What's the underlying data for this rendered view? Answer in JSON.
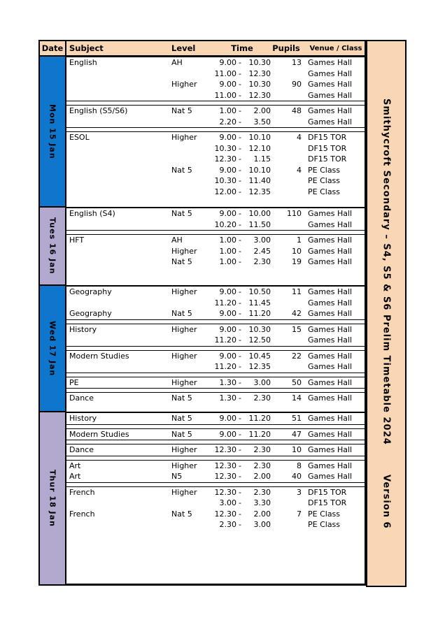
{
  "colors": {
    "peach": "#FAD7B4",
    "blue": "#0E76CC",
    "purple": "#B3A8CE",
    "grid": "#000000",
    "page_bg": "#FFFFFF"
  },
  "header": {
    "date": "Date",
    "subject": "Subject",
    "level": "Level",
    "time": "Time",
    "pupils": "Pupils",
    "venue": "Venue / Class"
  },
  "side_title": {
    "line1": "Smithycroft Secondary – S4, S5 & S6 Prelim Timetable 2024",
    "line2": "Version 6"
  },
  "days": [
    {
      "label": "Mon 15 Jan",
      "color": "blue",
      "blocks": [
        {
          "rows": [
            {
              "subject": "English",
              "level": "AH",
              "start": "9.00",
              "dash": "-",
              "end": "10.30",
              "pupils": "13",
              "venue": "Games Hall"
            },
            {
              "subject": "",
              "level": "",
              "start": "11.00",
              "dash": "-",
              "end": "12.30",
              "pupils": "",
              "venue": "Games Hall"
            },
            {
              "subject": "",
              "level": "Higher",
              "start": "9.00",
              "dash": "-",
              "end": "10.30",
              "pupils": "90",
              "venue": "Games Hall"
            },
            {
              "subject": "",
              "level": "",
              "start": "11.00",
              "dash": "-",
              "end": "12.30",
              "pupils": "",
              "venue": "Games Hall"
            }
          ]
        },
        {
          "rows": [
            {
              "subject": "English (S5/S6)",
              "level": "Nat 5",
              "start": "1.00",
              "dash": "-",
              "end": "2.00",
              "pupils": "48",
              "venue": "Games Hall"
            },
            {
              "subject": "",
              "level": "",
              "start": "2.20",
              "dash": "-",
              "end": "3.50",
              "pupils": "",
              "venue": "Games Hall"
            }
          ]
        },
        {
          "rows": [
            {
              "subject": "ESOL",
              "level": "Higher",
              "start": "9.00",
              "dash": "-",
              "end": "10.10",
              "pupils": "4",
              "venue": "DF15 TOR"
            },
            {
              "subject": "",
              "level": "",
              "start": "10.30",
              "dash": "-",
              "end": "12.10",
              "pupils": "",
              "venue": "DF15 TOR"
            },
            {
              "subject": "",
              "level": "",
              "start": "12.30",
              "dash": "-",
              "end": "1.15",
              "pupils": "",
              "venue": "DF15 TOR"
            },
            {
              "subject": "",
              "level": "Nat 5",
              "start": "9.00",
              "dash": "-",
              "end": "10.10",
              "pupils": "4",
              "venue": "PE Class"
            },
            {
              "subject": "",
              "level": "",
              "start": "10.30",
              "dash": "-",
              "end": "11.40",
              "pupils": "",
              "venue": "PE Class"
            },
            {
              "subject": "",
              "level": "",
              "start": "12.00",
              "dash": "-",
              "end": "12.35",
              "pupils": "",
              "venue": "PE Class"
            }
          ]
        }
      ]
    },
    {
      "label": "Tues 16 Jan",
      "color": "purple",
      "blocks": [
        {
          "rows": [
            {
              "subject": "English (S4)",
              "level": "Nat 5",
              "start": "9.00",
              "dash": "-",
              "end": "10.00",
              "pupils": "110",
              "venue": "Games Hall"
            },
            {
              "subject": "",
              "level": "",
              "start": "10.20",
              "dash": "-",
              "end": "11.50",
              "pupils": "",
              "venue": "Games Hall"
            }
          ]
        },
        {
          "rows": [
            {
              "subject": "HFT",
              "level": "AH",
              "start": "1.00",
              "dash": "-",
              "end": "3.00",
              "pupils": "1",
              "venue": "Games Hall"
            },
            {
              "subject": "",
              "level": "Higher",
              "start": "1.00",
              "dash": "-",
              "end": "2.45",
              "pupils": "10",
              "venue": "Games Hall"
            },
            {
              "subject": "",
              "level": "Nat 5",
              "start": "1.00",
              "dash": "-",
              "end": "2.30",
              "pupils": "19",
              "venue": "Games Hall"
            }
          ]
        }
      ]
    },
    {
      "label": "Wed 17 Jan",
      "color": "blue",
      "blocks": [
        {
          "rows": [
            {
              "subject": "Geography",
              "level": "Higher",
              "start": "9.00",
              "dash": "-",
              "end": "10.50",
              "pupils": "11",
              "venue": "Games Hall"
            },
            {
              "subject": "",
              "level": "",
              "start": "11.20",
              "dash": "-",
              "end": "11.45",
              "pupils": "",
              "venue": "Games Hall"
            },
            {
              "subject": "Geography",
              "level": "Nat 5",
              "start": "9.00",
              "dash": "-",
              "end": "11.20",
              "pupils": "42",
              "venue": "Games Hall"
            }
          ]
        },
        {
          "rows": [
            {
              "subject": "History",
              "level": "Higher",
              "start": "9.00",
              "dash": "-",
              "end": "10.30",
              "pupils": "15",
              "venue": "Games Hall"
            },
            {
              "subject": "",
              "level": "",
              "start": "11.20",
              "dash": "-",
              "end": "12.50",
              "pupils": "",
              "venue": "Games Hall"
            }
          ]
        },
        {
          "rows": [
            {
              "subject": "Modern Studies",
              "level": "Higher",
              "start": "9.00",
              "dash": "-",
              "end": "10.45",
              "pupils": "22",
              "venue": "Games Hall"
            },
            {
              "subject": "",
              "level": "",
              "start": "11.20",
              "dash": "-",
              "end": "12.35",
              "pupils": "",
              "venue": "Games Hall"
            }
          ]
        },
        {
          "rows": [
            {
              "subject": "PE",
              "level": "Higher",
              "start": "1.30",
              "dash": "-",
              "end": "3.00",
              "pupils": "50",
              "venue": "Games Hall"
            }
          ]
        },
        {
          "rows": [
            {
              "subject": "Dance",
              "level": "Nat 5",
              "start": "1.30",
              "dash": "-",
              "end": "2.30",
              "pupils": "14",
              "venue": "Games Hall"
            }
          ]
        }
      ]
    },
    {
      "label": "Thur 18 Jan",
      "color": "purple",
      "blocks": [
        {
          "rows": [
            {
              "subject": "History",
              "level": "Nat 5",
              "start": "9.00",
              "dash": "-",
              "end": "11.20",
              "pupils": "51",
              "venue": "Games Hall"
            }
          ]
        },
        {
          "rows": [
            {
              "subject": "Modern Studies",
              "level": "Nat 5",
              "start": "9.00",
              "dash": "-",
              "end": "11.20",
              "pupils": "47",
              "venue": "Games Hall"
            }
          ]
        },
        {
          "rows": [
            {
              "subject": "Dance",
              "level": "Higher",
              "start": "12.30",
              "dash": "-",
              "end": "2.30",
              "pupils": "10",
              "venue": "Games Hall"
            }
          ]
        },
        {
          "rows": [
            {
              "subject": "Art",
              "level": "Higher",
              "start": "12.30",
              "dash": "-",
              "end": "2.30",
              "pupils": "8",
              "venue": "Games Hall"
            },
            {
              "subject": "Art",
              "level": "N5",
              "start": "12.30",
              "dash": "-",
              "end": "2.00",
              "pupils": "40",
              "venue": "Games Hall"
            }
          ]
        },
        {
          "rows": [
            {
              "subject": "French",
              "level": "Higher",
              "start": "12.30",
              "dash": "-",
              "end": "2.30",
              "pupils": "3",
              "venue": "DF15 TOR"
            },
            {
              "subject": "",
              "level": "",
              "start": "3.00",
              "dash": "-",
              "end": "3.30",
              "pupils": "",
              "venue": "DF15 TOR"
            },
            {
              "subject": "French",
              "level": "Nat 5",
              "start": "12.30",
              "dash": "-",
              "end": "2.00",
              "pupils": "7",
              "venue": "PE Class"
            },
            {
              "subject": "",
              "level": "",
              "start": "2.30",
              "dash": "-",
              "end": "3.00",
              "pupils": "",
              "venue": "PE Class"
            }
          ]
        }
      ]
    }
  ]
}
